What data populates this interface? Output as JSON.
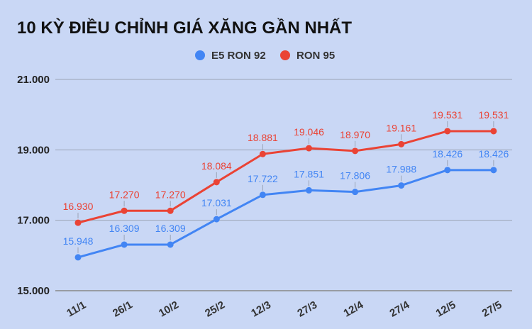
{
  "chart_data": {
    "type": "line",
    "title": "10 KỲ ĐIỀU CHỈNH GIÁ XĂNG GẦN NHẤT",
    "categories": [
      "11/1",
      "26/1",
      "10/2",
      "25/2",
      "12/3",
      "27/3",
      "12/4",
      "27/4",
      "12/5",
      "27/5"
    ],
    "ylim": [
      15000,
      21000
    ],
    "yticks": [
      15000,
      17000,
      19000,
      21000
    ],
    "ytick_labels": [
      "15.000",
      "17.000",
      "19.000",
      "21.000"
    ],
    "grid": true,
    "legend_position": "top",
    "series": [
      {
        "name": "E5 RON 92",
        "color": "#4285f4",
        "values": [
          15948,
          16309,
          16309,
          17031,
          17722,
          17851,
          17806,
          17988,
          18426,
          18426
        ],
        "labels": [
          "15.948",
          "16.309",
          "16.309",
          "17.031",
          "17.722",
          "17.851",
          "17.806",
          "17.988",
          "18.426",
          "18.426"
        ]
      },
      {
        "name": "RON 95",
        "color": "#ea4335",
        "values": [
          16930,
          17270,
          17270,
          18084,
          18881,
          19046,
          18970,
          19161,
          19531,
          19531
        ],
        "labels": [
          "16.930",
          "17.270",
          "17.270",
          "18.084",
          "18.881",
          "19.046",
          "18.970",
          "19.161",
          "19.531",
          "19.531"
        ]
      }
    ]
  }
}
